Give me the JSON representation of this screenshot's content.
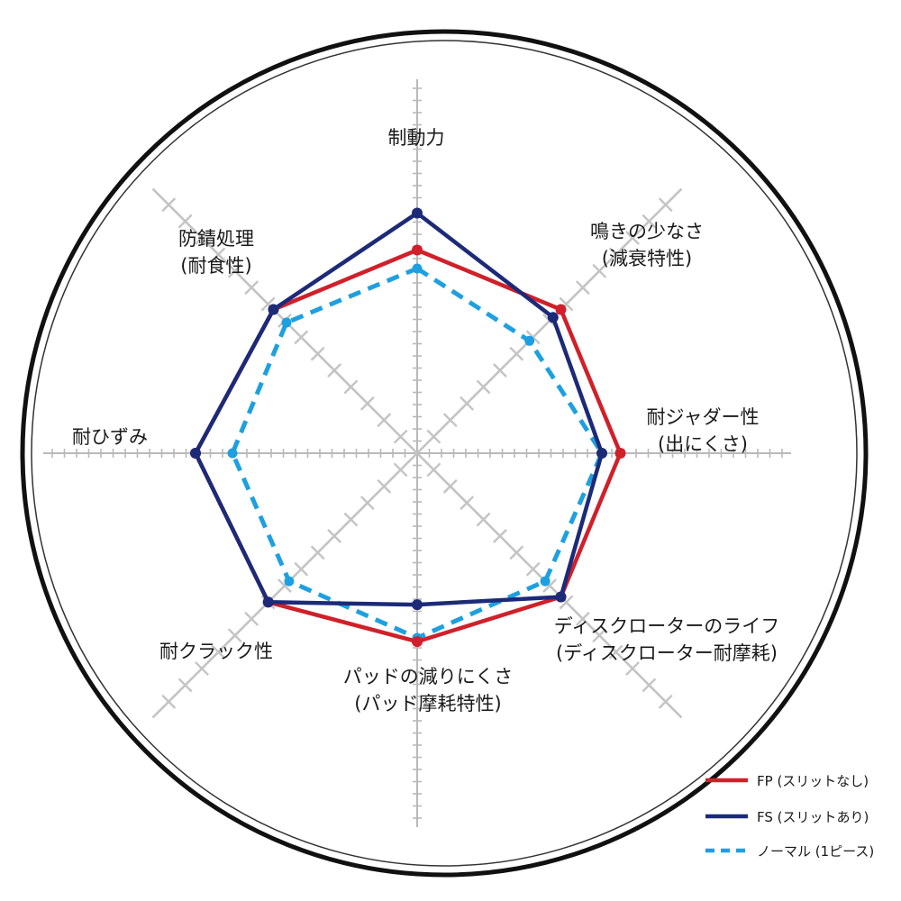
{
  "chart_data": {
    "type": "radar",
    "axes": [
      {
        "label": [
          "制動力"
        ]
      },
      {
        "label": [
          "鳴きの少なさ",
          "(減衰特性)"
        ]
      },
      {
        "label": [
          "耐ジャダー性",
          "(出にくさ)"
        ]
      },
      {
        "label": [
          "ディスクローターのライフ",
          "(ディスクローター耐摩耗)"
        ]
      },
      {
        "label": [
          "パッドの減りにくさ",
          "(パッド摩耗特性)"
        ]
      },
      {
        "label": [
          "耐クラック性"
        ]
      },
      {
        "label": [
          "耐ひずみ"
        ]
      },
      {
        "label": [
          "防錆処理",
          "(耐食性)"
        ]
      }
    ],
    "scale_max": 10,
    "series": [
      {
        "name": "FP (スリットなし)",
        "color": "#d0202a",
        "style": "solid",
        "values": [
          5.5,
          5.5,
          5.5,
          5.5,
          5.1,
          5.7,
          6.0,
          5.5
        ]
      },
      {
        "name": "FS (スリットあり)",
        "color": "#1c2a78",
        "style": "solid",
        "values": [
          6.5,
          5.2,
          5.0,
          5.5,
          4.1,
          5.7,
          6.0,
          5.5
        ]
      },
      {
        "name": "ノーマル (1ピース)",
        "color": "#1ea0e0",
        "style": "dashed",
        "values": [
          5.0,
          4.3,
          5.0,
          4.9,
          5.0,
          4.9,
          5.0,
          5.0
        ]
      }
    ],
    "legend_position": "bottom-right"
  }
}
